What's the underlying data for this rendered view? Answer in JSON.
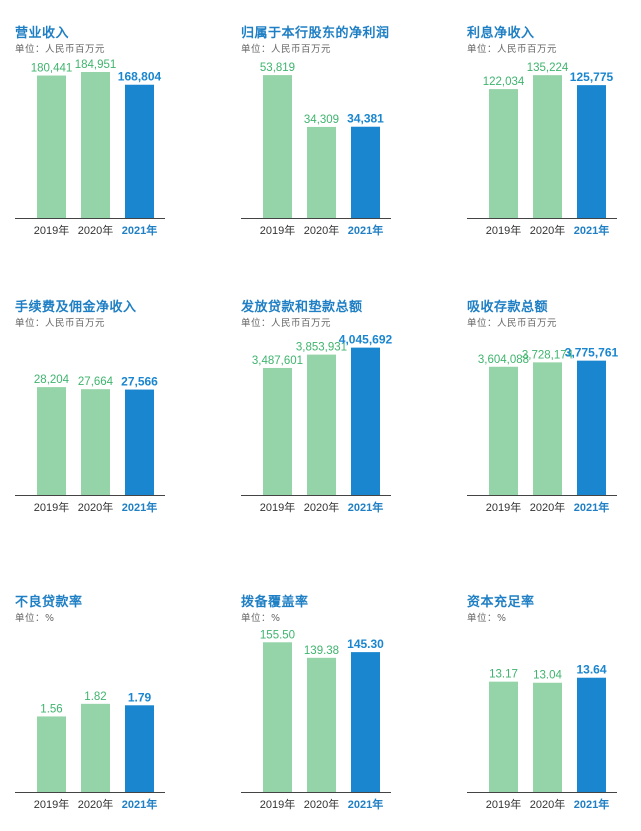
{
  "chart_data": [
    {
      "type": "bar",
      "title": "营业收入",
      "unit": "单位：人民币百万元",
      "categories": [
        "2019年",
        "2020年",
        "2021年"
      ],
      "values": [
        180441,
        184951,
        168804
      ],
      "labels": [
        "180,441",
        "184,951",
        "168,804"
      ],
      "ylim": [
        0,
        190000
      ]
    },
    {
      "type": "bar",
      "title": "归属于本行股东的净利润",
      "unit": "单位：人民币百万元",
      "categories": [
        "2019年",
        "2020年",
        "2021年"
      ],
      "values": [
        53819,
        34309,
        34381
      ],
      "labels": [
        "53,819",
        "34,309",
        "34,381"
      ],
      "ylim": [
        0,
        56500
      ]
    },
    {
      "type": "bar",
      "title": "利息净收入",
      "unit": "单位：人民币百万元",
      "categories": [
        "2019年",
        "2020年",
        "2021年"
      ],
      "values": [
        122034,
        135224,
        125775
      ],
      "labels": [
        "122,034",
        "135,224",
        "125,775"
      ],
      "ylim": [
        0,
        142000
      ]
    },
    {
      "type": "bar",
      "title": "手续费及佣金净收入",
      "unit": "单位：人民币百万元",
      "categories": [
        "2019年",
        "2020年",
        "2021年"
      ],
      "values": [
        28204,
        27664,
        27566
      ],
      "labels": [
        "28,204",
        "27,664",
        "27,566"
      ],
      "ylim": [
        0,
        40000
      ]
    },
    {
      "type": "bar",
      "title": "发放贷款和垫款总额",
      "unit": "单位：人民币百万元",
      "categories": [
        "2019年",
        "2020年",
        "2021年"
      ],
      "values": [
        3487601,
        3853931,
        4045692
      ],
      "labels": [
        "3,487,601",
        "3,853,931",
        "4,045,692"
      ],
      "ylim": [
        0,
        4200000
      ]
    },
    {
      "type": "bar",
      "title": "吸收存款总额",
      "unit": "单位：人民币百万元",
      "categories": [
        "2019年",
        "2020年",
        "2021年"
      ],
      "values": [
        3604088,
        3728174,
        3775761
      ],
      "labels": [
        "3,604,088",
        "3,728,174",
        "3,775,761"
      ],
      "ylim": [
        0,
        4300000
      ]
    },
    {
      "type": "bar",
      "title": "不良贷款率",
      "unit": "单位：%",
      "categories": [
        "2019年",
        "2020年",
        "2021年"
      ],
      "values": [
        1.56,
        1.82,
        1.79
      ],
      "labels": [
        "1.56",
        "1.82",
        "1.79"
      ],
      "ylim": [
        0,
        3.2
      ]
    },
    {
      "type": "bar",
      "title": "拨备覆盖率",
      "unit": "单位：%",
      "categories": [
        "2019年",
        "2020年",
        "2021年"
      ],
      "values": [
        155.5,
        139.38,
        145.3
      ],
      "labels": [
        "155.50",
        "139.38",
        "145.30"
      ],
      "ylim": [
        0,
        161
      ]
    },
    {
      "type": "bar",
      "title": "资本充足率",
      "unit": "单位：%",
      "categories": [
        "2019年",
        "2020年",
        "2021年"
      ],
      "values": [
        13.17,
        13.04,
        13.64
      ],
      "labels": [
        "13.17",
        "13.04",
        "13.64"
      ],
      "ylim": [
        0,
        18.5
      ]
    }
  ],
  "colors": {
    "bar_prior": "#95d3a8",
    "bar_current": "#1a86cf",
    "label_prior": "#3fb46e",
    "label_current": "#1a86cf",
    "axis": "#444444",
    "title": "#1f7fc4"
  }
}
